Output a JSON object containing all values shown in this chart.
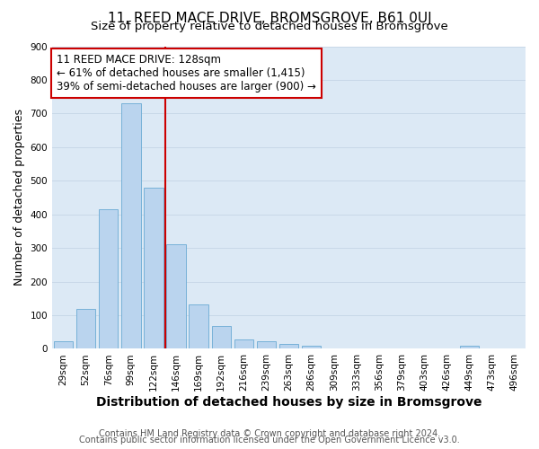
{
  "title": "11, REED MACE DRIVE, BROMSGROVE, B61 0UJ",
  "subtitle": "Size of property relative to detached houses in Bromsgrove",
  "xlabel": "Distribution of detached houses by size in Bromsgrove",
  "ylabel": "Number of detached properties",
  "footnote1": "Contains HM Land Registry data © Crown copyright and database right 2024.",
  "footnote2": "Contains public sector information licensed under the Open Government Licence v3.0.",
  "categories": [
    "29sqm",
    "52sqm",
    "76sqm",
    "99sqm",
    "122sqm",
    "146sqm",
    "169sqm",
    "192sqm",
    "216sqm",
    "239sqm",
    "263sqm",
    "286sqm",
    "309sqm",
    "333sqm",
    "356sqm",
    "379sqm",
    "403sqm",
    "426sqm",
    "449sqm",
    "473sqm",
    "496sqm"
  ],
  "values": [
    22,
    120,
    415,
    730,
    480,
    312,
    133,
    67,
    28,
    22,
    14,
    8,
    0,
    0,
    0,
    0,
    0,
    0,
    10,
    0,
    0
  ],
  "bar_color": "#bad4ee",
  "bar_edge_color": "#6aaad4",
  "vline_x_index": 4,
  "vline_color": "#cc0000",
  "annotation_line1": "11 REED MACE DRIVE: 128sqm",
  "annotation_line2": "← 61% of detached houses are smaller (1,415)",
  "annotation_line3": "39% of semi-detached houses are larger (900) →",
  "annotation_box_facecolor": "white",
  "annotation_box_edgecolor": "#cc0000",
  "ylim": [
    0,
    900
  ],
  "yticks": [
    0,
    100,
    200,
    300,
    400,
    500,
    600,
    700,
    800,
    900
  ],
  "plot_bg_color": "#dce9f5",
  "fig_bg_color": "#ffffff",
  "grid_color": "#c8d8e8",
  "title_fontsize": 11,
  "subtitle_fontsize": 9.5,
  "ylabel_fontsize": 9,
  "xlabel_fontsize": 10,
  "tick_fontsize": 7.5,
  "annot_fontsize": 8.5,
  "footnote_fontsize": 7
}
